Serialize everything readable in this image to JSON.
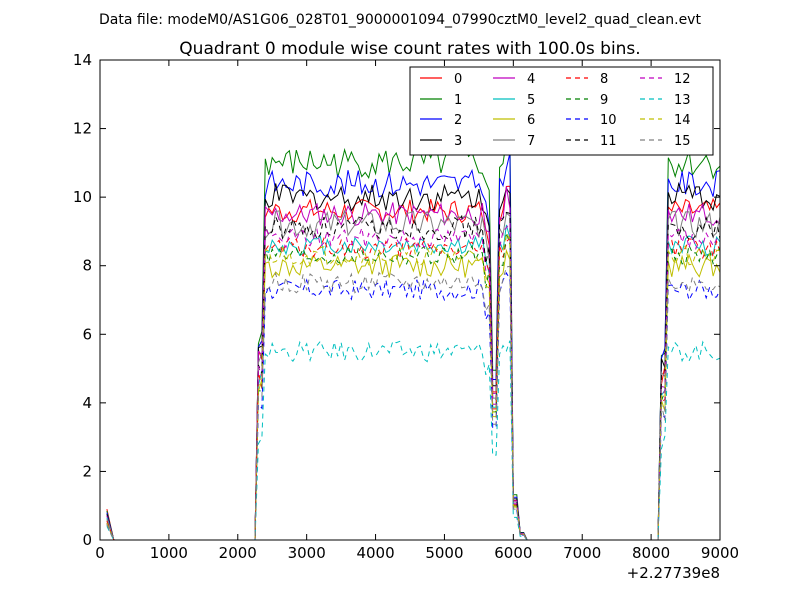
{
  "figure": {
    "suptitle": "Data file: modeM0/AS1G06_028T01_9000001094_07990cztM0_level2_quad_clean.evt",
    "title": "Quadrant 0 module wise count rates with 100.0s bins.",
    "x_offset_label": "+2.27739e8"
  },
  "chart_data": {
    "type": "line",
    "title": "Quadrant 0 module wise count rates with 100.0s bins.",
    "xlabel": "",
    "ylabel": "",
    "xlim": [
      0,
      9000
    ],
    "ylim": [
      0,
      14
    ],
    "x_offset": "+2.27739e8",
    "grid": false,
    "legend_placement": "top-right",
    "legend_columns": 4,
    "x_ticks": [
      0,
      1000,
      2000,
      3000,
      4000,
      5000,
      6000,
      7000,
      8000,
      9000
    ],
    "y_ticks": [
      0,
      2,
      4,
      6,
      8,
      10,
      12,
      14
    ],
    "series": [
      {
        "name": "0",
        "color": "#ff0000",
        "dashed": false,
        "baseline": 9.6,
        "amp": 0.35,
        "peak": 0.9
      },
      {
        "name": "1",
        "color": "#008000",
        "dashed": false,
        "baseline": 11.0,
        "amp": 0.45,
        "peak": 0.85
      },
      {
        "name": "2",
        "color": "#0000ff",
        "dashed": false,
        "baseline": 10.4,
        "amp": 0.4,
        "peak": 0.8
      },
      {
        "name": "3",
        "color": "#000000",
        "dashed": false,
        "baseline": 10.0,
        "amp": 0.4,
        "peak": 0.75
      },
      {
        "name": "4",
        "color": "#bf00bf",
        "dashed": false,
        "baseline": 9.5,
        "amp": 0.35,
        "peak": 0.7
      },
      {
        "name": "5",
        "color": "#00bfbf",
        "dashed": false,
        "baseline": 8.6,
        "amp": 0.3,
        "peak": 0.65
      },
      {
        "name": "6",
        "color": "#bfbf00",
        "dashed": false,
        "baseline": 8.0,
        "amp": 0.35,
        "peak": 0.6
      },
      {
        "name": "7",
        "color": "#808080",
        "dashed": false,
        "baseline": 9.2,
        "amp": 0.4,
        "peak": 0.6
      },
      {
        "name": "8",
        "color": "#ff0000",
        "dashed": true,
        "baseline": 8.5,
        "amp": 0.3,
        "peak": 0.55
      },
      {
        "name": "9",
        "color": "#008000",
        "dashed": true,
        "baseline": 8.3,
        "amp": 0.3,
        "peak": 0.5
      },
      {
        "name": "10",
        "color": "#0000ff",
        "dashed": true,
        "baseline": 7.3,
        "amp": 0.3,
        "peak": 0.45
      },
      {
        "name": "11",
        "color": "#000000",
        "dashed": true,
        "baseline": 9.1,
        "amp": 0.35,
        "peak": 0.5
      },
      {
        "name": "12",
        "color": "#bf00bf",
        "dashed": true,
        "baseline": 8.8,
        "amp": 0.3,
        "peak": 0.5
      },
      {
        "name": "13",
        "color": "#00bfbf",
        "dashed": true,
        "baseline": 5.5,
        "amp": 0.3,
        "peak": 0.4
      },
      {
        "name": "14",
        "color": "#bfbf00",
        "dashed": true,
        "baseline": 8.3,
        "amp": 0.3,
        "peak": 0.5
      },
      {
        "name": "15",
        "color": "#808080",
        "dashed": true,
        "baseline": 7.5,
        "amp": 0.3,
        "peak": 0.45
      }
    ]
  }
}
